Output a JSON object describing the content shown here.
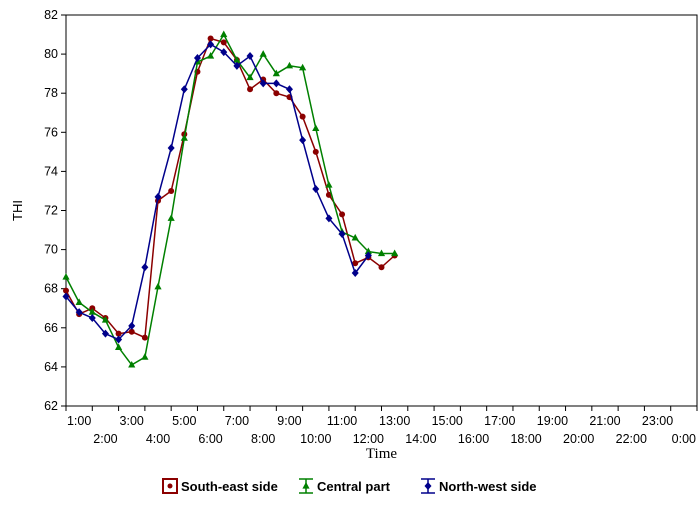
{
  "chart_data": {
    "type": "line",
    "title": "",
    "xlabel": "Time",
    "ylabel": "THI",
    "ylim": [
      62,
      82
    ],
    "yticks": [
      62,
      64,
      66,
      68,
      70,
      72,
      74,
      76,
      78,
      80,
      82
    ],
    "xlim": [
      0.5,
      24.5
    ],
    "categories": [
      "1:00",
      "2:00",
      "3:00",
      "4:00",
      "5:00",
      "6:00",
      "7:00",
      "8:00",
      "9:00",
      "10:00",
      "11:00",
      "12:00",
      "13:00",
      "14:00",
      "15:00",
      "16:00",
      "17:00",
      "18:00",
      "19:00",
      "20:00",
      "21:00",
      "22:00",
      "23:00",
      "0:00"
    ],
    "grid": false,
    "legend": "bottom",
    "series": [
      {
        "name": "South-east side",
        "color": "#8B0000",
        "marker": "circle",
        "points": [
          [
            0.5,
            67.9
          ],
          [
            1,
            66.7
          ],
          [
            1.5,
            67.0
          ],
          [
            2,
            66.5
          ],
          [
            2.5,
            65.7
          ],
          [
            3,
            65.8
          ],
          [
            3.5,
            65.5
          ],
          [
            4,
            72.5
          ],
          [
            4.5,
            73.0
          ],
          [
            5,
            75.9
          ],
          [
            5.5,
            79.1
          ],
          [
            6,
            80.8
          ],
          [
            6.5,
            80.6
          ],
          [
            7,
            79.7
          ],
          [
            7.5,
            78.2
          ],
          [
            8,
            78.7
          ],
          [
            8.5,
            78.0
          ],
          [
            9,
            77.8
          ],
          [
            9.5,
            76.8
          ],
          [
            10,
            75.0
          ],
          [
            10.5,
            72.8
          ],
          [
            11,
            71.8
          ],
          [
            11.5,
            69.3
          ],
          [
            12,
            69.6
          ],
          [
            12.5,
            69.1
          ],
          [
            13,
            69.7
          ]
        ]
      },
      {
        "name": "Central part",
        "color": "#008000",
        "marker": "triangle",
        "points": [
          [
            0.5,
            68.6
          ],
          [
            1,
            67.3
          ],
          [
            1.5,
            66.8
          ],
          [
            2,
            66.4
          ],
          [
            2.5,
            65.0
          ],
          [
            3,
            64.1
          ],
          [
            3.5,
            64.5
          ],
          [
            4,
            68.1
          ],
          [
            4.5,
            71.6
          ],
          [
            5,
            75.7
          ],
          [
            5.5,
            79.6
          ],
          [
            6,
            79.9
          ],
          [
            6.5,
            81.0
          ],
          [
            7,
            79.7
          ],
          [
            7.5,
            78.8
          ],
          [
            8,
            80.0
          ],
          [
            8.5,
            79.0
          ],
          [
            9,
            79.4
          ],
          [
            9.5,
            79.3
          ],
          [
            10,
            76.2
          ],
          [
            10.5,
            73.3
          ],
          [
            11,
            70.9
          ],
          [
            11.5,
            70.6
          ],
          [
            12,
            69.9
          ],
          [
            12.5,
            69.8
          ],
          [
            13,
            69.8
          ]
        ]
      },
      {
        "name": "North-west side",
        "color": "#00008B",
        "marker": "diamond",
        "points": [
          [
            0.5,
            67.6
          ],
          [
            1,
            66.8
          ],
          [
            1.5,
            66.5
          ],
          [
            2,
            65.7
          ],
          [
            2.5,
            65.4
          ],
          [
            3,
            66.1
          ],
          [
            3.5,
            69.1
          ],
          [
            4,
            72.7
          ],
          [
            4.5,
            75.2
          ],
          [
            5,
            78.2
          ],
          [
            5.5,
            79.8
          ],
          [
            6,
            80.5
          ],
          [
            6.5,
            80.1
          ],
          [
            7,
            79.4
          ],
          [
            7.5,
            79.9
          ],
          [
            8,
            78.5
          ],
          [
            8.5,
            78.5
          ],
          [
            9,
            78.2
          ],
          [
            9.5,
            75.6
          ],
          [
            10,
            73.1
          ],
          [
            10.5,
            71.6
          ],
          [
            11,
            70.8
          ],
          [
            11.5,
            68.8
          ],
          [
            12,
            69.7
          ]
        ]
      }
    ]
  }
}
